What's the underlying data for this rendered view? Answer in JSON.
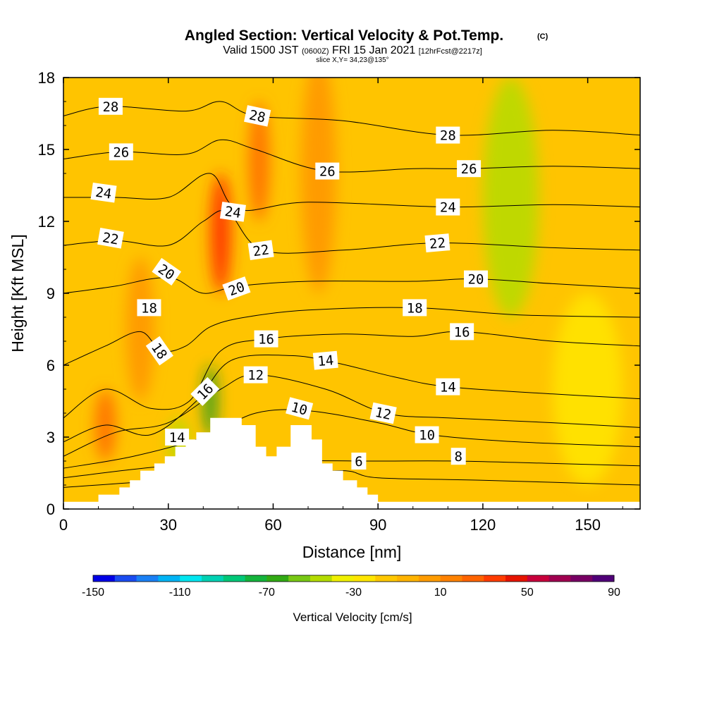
{
  "header": {
    "title": "Angled Section: Vertical Velocity & Pot.Temp.",
    "units_tag": "(C)",
    "valid_prefix": "Valid 1500 JST",
    "valid_zulu": "(0600Z)",
    "valid_date": "FRI 15 Jan 2021",
    "forecast": "[12hrFcst@2217z]",
    "slice": "slice X,Y= 34,23@135°"
  },
  "colors": {
    "background": "#ffffff",
    "contour_line": "#000000",
    "terrain": "#ffffff",
    "colorbar": [
      "#0000e6",
      "#1a4cf0",
      "#1a80f5",
      "#00b4f5",
      "#00e6f0",
      "#00d2b4",
      "#00c878",
      "#14b43c",
      "#32aa14",
      "#78c814",
      "#b4dc00",
      "#f0f000",
      "#ffe600",
      "#ffc800",
      "#ffb400",
      "#ff9c00",
      "#ff8200",
      "#ff6400",
      "#ff3c00",
      "#e61400",
      "#c8003c",
      "#a00050",
      "#780064",
      "#500078"
    ]
  },
  "chart_data": {
    "type": "heatmap",
    "title": "Angled Section: Vertical Velocity & Pot.Temp.",
    "xlabel": "Distance [nm]",
    "ylabel": "Height [Kft MSL]",
    "xlim": [
      0,
      165
    ],
    "ylim": [
      0,
      18
    ],
    "x_ticks": [
      0,
      30,
      60,
      90,
      120,
      150
    ],
    "y_ticks": [
      0,
      3,
      6,
      9,
      12,
      15,
      18
    ],
    "colorbar": {
      "label": "Vertical Velocity [cm/s]",
      "min": -150,
      "max": 90,
      "step": 10,
      "tick_labels": [
        -150,
        -110,
        -70,
        -30,
        10,
        50,
        90
      ]
    },
    "terrain_profile": [
      {
        "x": 0,
        "y": 0.3
      },
      {
        "x": 10,
        "y": 0.3
      },
      {
        "x": 10,
        "y": 0.6
      },
      {
        "x": 16,
        "y": 0.6
      },
      {
        "x": 16,
        "y": 0.9
      },
      {
        "x": 19,
        "y": 0.9
      },
      {
        "x": 19,
        "y": 1.2
      },
      {
        "x": 22,
        "y": 1.2
      },
      {
        "x": 22,
        "y": 1.6
      },
      {
        "x": 26,
        "y": 1.6
      },
      {
        "x": 26,
        "y": 1.9
      },
      {
        "x": 29,
        "y": 1.9
      },
      {
        "x": 29,
        "y": 2.2
      },
      {
        "x": 32,
        "y": 2.2
      },
      {
        "x": 32,
        "y": 2.6
      },
      {
        "x": 35,
        "y": 2.6
      },
      {
        "x": 35,
        "y": 2.9
      },
      {
        "x": 38,
        "y": 2.9
      },
      {
        "x": 38,
        "y": 3.2
      },
      {
        "x": 42,
        "y": 3.2
      },
      {
        "x": 42,
        "y": 3.8
      },
      {
        "x": 51,
        "y": 3.8
      },
      {
        "x": 51,
        "y": 3.5
      },
      {
        "x": 55,
        "y": 3.5
      },
      {
        "x": 55,
        "y": 2.6
      },
      {
        "x": 58,
        "y": 2.6
      },
      {
        "x": 58,
        "y": 2.2
      },
      {
        "x": 61,
        "y": 2.2
      },
      {
        "x": 61,
        "y": 2.6
      },
      {
        "x": 65,
        "y": 2.6
      },
      {
        "x": 65,
        "y": 3.5
      },
      {
        "x": 71,
        "y": 3.5
      },
      {
        "x": 71,
        "y": 2.9
      },
      {
        "x": 74,
        "y": 2.9
      },
      {
        "x": 74,
        "y": 1.9
      },
      {
        "x": 77,
        "y": 1.9
      },
      {
        "x": 77,
        "y": 1.6
      },
      {
        "x": 80,
        "y": 1.6
      },
      {
        "x": 80,
        "y": 1.2
      },
      {
        "x": 84,
        "y": 1.2
      },
      {
        "x": 84,
        "y": 0.9
      },
      {
        "x": 87,
        "y": 0.9
      },
      {
        "x": 87,
        "y": 0.6
      },
      {
        "x": 90,
        "y": 0.6
      },
      {
        "x": 90,
        "y": 0.3
      },
      {
        "x": 165,
        "y": 0.3
      }
    ],
    "velocity_features": [
      {
        "x": 45,
        "y": 11.5,
        "w": 0.9,
        "sx": 3,
        "sy": 2.5,
        "kind": "updraft"
      },
      {
        "x": 56,
        "y": 14.5,
        "w": 0.7,
        "sx": 3,
        "sy": 2.5,
        "kind": "updraft"
      },
      {
        "x": 73,
        "y": 14.0,
        "w": 0.5,
        "sx": 5,
        "sy": 5,
        "kind": "updraft"
      },
      {
        "x": 12,
        "y": 3.5,
        "w": 0.6,
        "sx": 3,
        "sy": 1.5,
        "kind": "updraft"
      },
      {
        "x": 22,
        "y": 7.5,
        "w": 0.4,
        "sx": 4,
        "sy": 3,
        "kind": "updraft"
      },
      {
        "x": 42,
        "y": 4.5,
        "w": 1.0,
        "sx": 2,
        "sy": 1.5,
        "kind": "downdraft"
      },
      {
        "x": 33,
        "y": 2.8,
        "w": 0.6,
        "sx": 3,
        "sy": 1,
        "kind": "downdraft"
      },
      {
        "x": 128,
        "y": 13.0,
        "w": 0.5,
        "sx": 8,
        "sy": 5,
        "kind": "downdraft"
      },
      {
        "x": 150,
        "y": 5.0,
        "w": 0.3,
        "sx": 10,
        "sy": 4,
        "kind": "downdraft"
      }
    ],
    "contour_labels": [
      {
        "text": "28",
        "x": 13.5,
        "y": 16.8,
        "angle": 0
      },
      {
        "text": "28",
        "x": 55.5,
        "y": 16.4,
        "angle": 12
      },
      {
        "text": "28",
        "x": 110,
        "y": 15.6,
        "angle": 0
      },
      {
        "text": "26",
        "x": 16.5,
        "y": 14.9,
        "angle": 0
      },
      {
        "text": "26",
        "x": 75.5,
        "y": 14.1,
        "angle": 0
      },
      {
        "text": "26",
        "x": 116,
        "y": 14.2,
        "angle": 0
      },
      {
        "text": "24",
        "x": 11.5,
        "y": 13.2,
        "angle": 8
      },
      {
        "text": "24",
        "x": 48.5,
        "y": 12.4,
        "angle": 8
      },
      {
        "text": "24",
        "x": 110,
        "y": 12.6,
        "angle": 0
      },
      {
        "text": "22",
        "x": 13.5,
        "y": 11.3,
        "angle": 10
      },
      {
        "text": "22",
        "x": 56.5,
        "y": 10.8,
        "angle": -8
      },
      {
        "text": "22",
        "x": 107,
        "y": 11.1,
        "angle": -5
      },
      {
        "text": "20",
        "x": 29.5,
        "y": 9.9,
        "angle": 35
      },
      {
        "text": "20",
        "x": 49.5,
        "y": 9.2,
        "angle": -20
      },
      {
        "text": "20",
        "x": 118,
        "y": 9.6,
        "angle": 0
      },
      {
        "text": "18",
        "x": 24.5,
        "y": 8.4,
        "angle": 0
      },
      {
        "text": "18",
        "x": 100.5,
        "y": 8.4,
        "angle": 0
      },
      {
        "text": "18",
        "x": 27.5,
        "y": 6.6,
        "angle": 55
      },
      {
        "text": "16",
        "x": 58,
        "y": 7.1,
        "angle": 0
      },
      {
        "text": "16",
        "x": 114,
        "y": 7.4,
        "angle": 0
      },
      {
        "text": "16",
        "x": 40.5,
        "y": 4.9,
        "angle": -45
      },
      {
        "text": "14",
        "x": 75,
        "y": 6.2,
        "angle": -5
      },
      {
        "text": "14",
        "x": 110,
        "y": 5.1,
        "angle": 0
      },
      {
        "text": "14",
        "x": 32.5,
        "y": 3.0,
        "angle": 0
      },
      {
        "text": "12",
        "x": 55,
        "y": 5.6,
        "angle": 0
      },
      {
        "text": "12",
        "x": 91.5,
        "y": 4.0,
        "angle": 12
      },
      {
        "text": "10",
        "x": 67.5,
        "y": 4.2,
        "angle": 15
      },
      {
        "text": "10",
        "x": 104,
        "y": 3.1,
        "angle": 0
      },
      {
        "text": "8",
        "x": 113,
        "y": 2.2,
        "angle": 0
      },
      {
        "text": "6",
        "x": 84.5,
        "y": 2.0,
        "angle": 0
      }
    ],
    "contour_levels": [
      {
        "level": 6,
        "points": [
          [
            0,
            0.9
          ],
          [
            30,
            1.2
          ],
          [
            60,
            1.4
          ],
          [
            80,
            1.6
          ],
          [
            90,
            1.3
          ],
          [
            120,
            1.2
          ],
          [
            165,
            1.0
          ]
        ]
      },
      {
        "level": 8,
        "points": [
          [
            0,
            1.3
          ],
          [
            30,
            1.8
          ],
          [
            60,
            2.0
          ],
          [
            90,
            2.0
          ],
          [
            112,
            2.0
          ],
          [
            140,
            1.9
          ],
          [
            165,
            1.8
          ]
        ]
      },
      {
        "level": 10,
        "points": [
          [
            0,
            1.7
          ],
          [
            20,
            2.2
          ],
          [
            40,
            3.0
          ],
          [
            55,
            4.0
          ],
          [
            70,
            4.1
          ],
          [
            90,
            3.6
          ],
          [
            105,
            3.1
          ],
          [
            130,
            2.8
          ],
          [
            165,
            2.6
          ]
        ]
      },
      {
        "level": 12,
        "points": [
          [
            0,
            2.2
          ],
          [
            15,
            3.2
          ],
          [
            30,
            3.6
          ],
          [
            45,
            5.0
          ],
          [
            55,
            5.6
          ],
          [
            75,
            5.0
          ],
          [
            92,
            4.0
          ],
          [
            110,
            3.8
          ],
          [
            140,
            3.6
          ],
          [
            165,
            3.4
          ]
        ]
      },
      {
        "level": 14,
        "points": [
          [
            0,
            2.8
          ],
          [
            12,
            3.5
          ],
          [
            25,
            3.1
          ],
          [
            38,
            4.5
          ],
          [
            48,
            6.2
          ],
          [
            65,
            6.4
          ],
          [
            78,
            6.1
          ],
          [
            95,
            5.5
          ],
          [
            110,
            5.1
          ],
          [
            140,
            4.8
          ],
          [
            165,
            4.6
          ]
        ]
      },
      {
        "level": 16,
        "points": [
          [
            0,
            3.8
          ],
          [
            12,
            5.0
          ],
          [
            25,
            4.2
          ],
          [
            36,
            4.5
          ],
          [
            45,
            6.6
          ],
          [
            58,
            7.1
          ],
          [
            80,
            7.3
          ],
          [
            100,
            7.2
          ],
          [
            114,
            7.4
          ],
          [
            140,
            7.0
          ],
          [
            165,
            6.8
          ]
        ]
      },
      {
        "level": 18,
        "points": [
          [
            0,
            6.0
          ],
          [
            12,
            6.8
          ],
          [
            22,
            7.4
          ],
          [
            28,
            6.6
          ],
          [
            35,
            6.8
          ],
          [
            42,
            7.6
          ],
          [
            52,
            8.0
          ],
          [
            70,
            8.3
          ],
          [
            100,
            8.4
          ],
          [
            130,
            8.1
          ],
          [
            165,
            8.0
          ]
        ]
      },
      {
        "level": 20,
        "points": [
          [
            0,
            9.0
          ],
          [
            15,
            9.3
          ],
          [
            25,
            9.6
          ],
          [
            32,
            9.6
          ],
          [
            40,
            9.0
          ],
          [
            50,
            9.3
          ],
          [
            70,
            9.5
          ],
          [
            100,
            9.5
          ],
          [
            118,
            9.6
          ],
          [
            140,
            9.4
          ],
          [
            165,
            9.2
          ]
        ]
      },
      {
        "level": 22,
        "points": [
          [
            0,
            11.0
          ],
          [
            15,
            11.2
          ],
          [
            30,
            11.0
          ],
          [
            40,
            12.0
          ],
          [
            47,
            12.4
          ],
          [
            57,
            10.8
          ],
          [
            80,
            10.8
          ],
          [
            107,
            11.1
          ],
          [
            140,
            10.9
          ],
          [
            165,
            10.8
          ]
        ]
      },
      {
        "level": 24,
        "points": [
          [
            0,
            13.0
          ],
          [
            15,
            13.0
          ],
          [
            30,
            13.0
          ],
          [
            42,
            14.0
          ],
          [
            50,
            12.5
          ],
          [
            70,
            12.8
          ],
          [
            110,
            12.6
          ],
          [
            140,
            12.7
          ],
          [
            165,
            12.6
          ]
        ]
      },
      {
        "level": 26,
        "points": [
          [
            0,
            14.6
          ],
          [
            16,
            14.9
          ],
          [
            35,
            14.8
          ],
          [
            45,
            15.4
          ],
          [
            55,
            15.0
          ],
          [
            75,
            14.1
          ],
          [
            100,
            14.2
          ],
          [
            116,
            14.2
          ],
          [
            140,
            14.3
          ],
          [
            165,
            14.2
          ]
        ]
      },
      {
        "level": 28,
        "points": [
          [
            0,
            16.4
          ],
          [
            13,
            16.8
          ],
          [
            35,
            16.6
          ],
          [
            45,
            17.0
          ],
          [
            55,
            16.4
          ],
          [
            80,
            16.2
          ],
          [
            110,
            15.6
          ],
          [
            140,
            15.8
          ],
          [
            165,
            15.6
          ]
        ]
      }
    ]
  }
}
